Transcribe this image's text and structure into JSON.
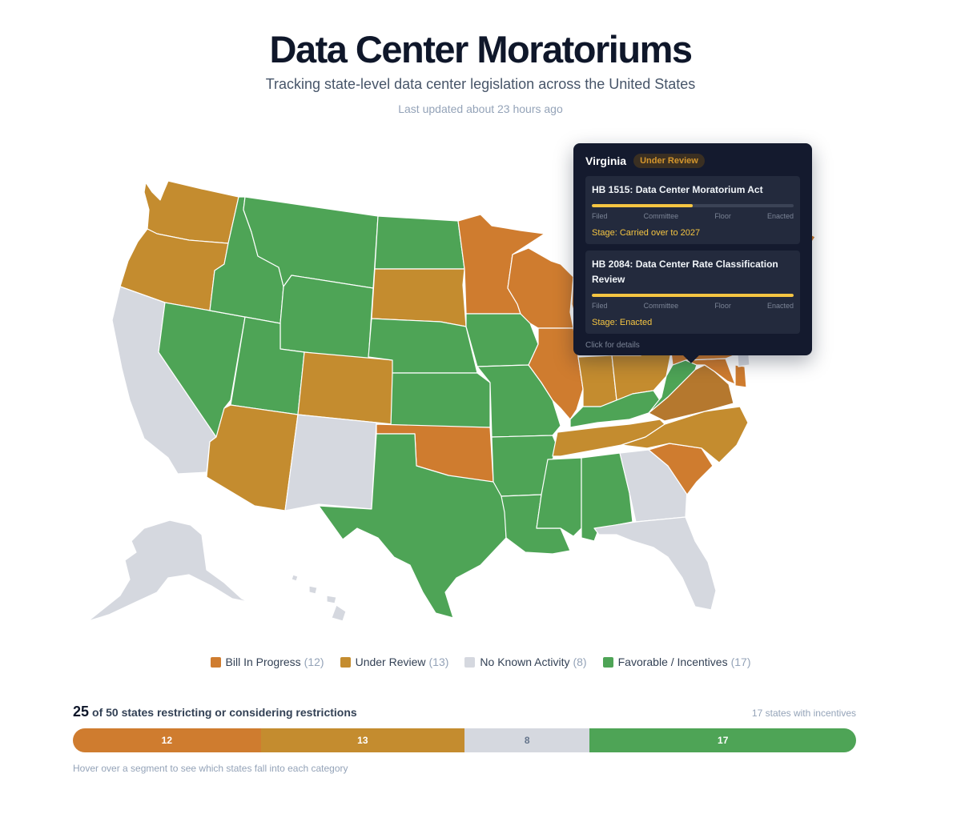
{
  "header": {
    "title": "Data Center Moratoriums",
    "subtitle": "Tracking state-level data center legislation across the United States",
    "updated": "Last updated about 23 hours ago"
  },
  "colors": {
    "bill_in_progress": "#cf7c2f",
    "under_review": "#c48c2f",
    "under_review_dark": "#b5782e",
    "no_activity": "#d5d8df",
    "favorable": "#4ea456"
  },
  "tooltip": {
    "state": "Virginia",
    "badge": "Under Review",
    "bills": [
      {
        "title": "HB 1515: Data Center Moratorium Act",
        "progress": 0.5,
        "stage": "Stage: Carried over to 2027"
      },
      {
        "title": "HB 2084: Data Center Rate Classification Review",
        "progress": 1.0,
        "stage": "Stage: Enacted"
      }
    ],
    "stages": [
      "Filed",
      "Committee",
      "Floor",
      "Enacted"
    ],
    "footer": "Click for details"
  },
  "legend": [
    {
      "label": "Bill In Progress",
      "count": "(12)",
      "color": "#cf7c2f"
    },
    {
      "label": "Under Review",
      "count": "(13)",
      "color": "#c48c2f"
    },
    {
      "label": "No Known Activity",
      "count": "(8)",
      "color": "#d5d8df"
    },
    {
      "label": "Favorable / Incentives",
      "count": "(17)",
      "color": "#4ea456"
    }
  ],
  "summary": {
    "count": "25",
    "text": "of 50 states restricting or considering restrictions",
    "right": "17 states with incentives",
    "hint": "Hover over a segment to see which states fall into each category",
    "segments": [
      {
        "value": 12,
        "label": "12",
        "color": "#cf7c2f"
      },
      {
        "value": 13,
        "label": "13",
        "color": "#c48c2f"
      },
      {
        "value": 8,
        "label": "8",
        "color": "#d5d8df"
      },
      {
        "value": 17,
        "label": "17",
        "color": "#4ea456"
      }
    ]
  },
  "states": {
    "WA": "under_review",
    "OR": "under_review",
    "CA": "no_activity",
    "NV": "favorable",
    "ID": "favorable",
    "MT": "favorable",
    "WY": "favorable",
    "UT": "favorable",
    "AZ": "under_review",
    "CO": "under_review",
    "NM": "no_activity",
    "ND": "favorable",
    "SD": "under_review",
    "NE": "favorable",
    "KS": "favorable",
    "OK": "bill_in_progress",
    "TX": "favorable",
    "MN": "bill_in_progress",
    "IA": "favorable",
    "MO": "favorable",
    "AR": "favorable",
    "LA": "favorable",
    "WI": "bill_in_progress",
    "IL": "bill_in_progress",
    "MI": "bill_in_progress",
    "IN": "under_review",
    "OH": "under_review",
    "KY": "favorable",
    "TN": "under_review",
    "MS": "favorable",
    "AL": "favorable",
    "GA": "no_activity",
    "FL": "no_activity",
    "SC": "bill_in_progress",
    "NC": "under_review",
    "VA": "under_review_dark",
    "WV": "favorable",
    "MD": "bill_in_progress",
    "DE": "bill_in_progress",
    "NJ": "no_activity",
    "PA": "bill_in_progress",
    "NY": "no_activity",
    "ME": "bill_in_progress",
    "AK": "no_activity",
    "HI": "no_activity"
  }
}
